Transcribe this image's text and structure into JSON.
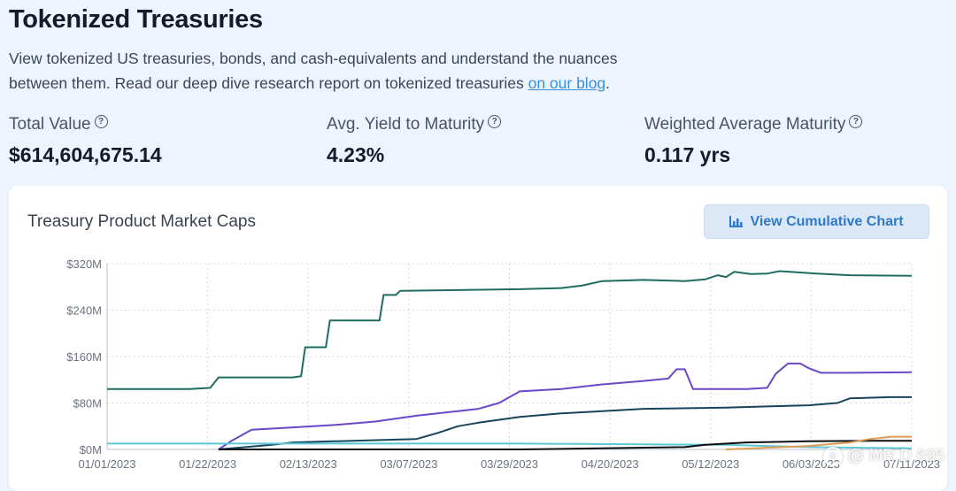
{
  "header": {
    "title": "Tokenized Treasuries",
    "description_pre": "View tokenized US treasuries, bonds, and cash-equivalents and understand the nuances between them. Read our deep dive research report on tokenized treasuries ",
    "blog_link": "on our blog",
    "description_post": "."
  },
  "stats": [
    {
      "label": "Total Value",
      "value": "$614,604,675.14"
    },
    {
      "label": "Avg. Yield to Maturity",
      "value": "4.23%"
    },
    {
      "label": "Weighted Average Maturity",
      "value": "0.117 yrs"
    }
  ],
  "card": {
    "title": "Treasury Product Market Caps",
    "button_label": "View Cumulative Chart",
    "button_icon": "bar-chart-icon"
  },
  "watermark": "@ MR.D 695",
  "colors": {
    "accent": "#3b8fd8",
    "series_teal": "#1f6b63",
    "series_purple": "#6a46c8",
    "series_navy": "#16445a",
    "series_cyan": "#5ec7d6",
    "series_black": "#0a0d12",
    "series_orange": "#e09b55"
  },
  "chart_data": {
    "type": "line",
    "x_ticks": [
      "01/01/2023",
      "01/22/2023",
      "02/13/2023",
      "03/07/2023",
      "03/29/2023",
      "04/20/2023",
      "05/12/2023",
      "06/03/2023",
      "07/11/2023"
    ],
    "y_ticks": [
      "$0M",
      "$80M",
      "$160M",
      "$240M",
      "$320M"
    ],
    "ylim": [
      0,
      320
    ],
    "xlim_days": [
      0,
      195
    ],
    "grid": true,
    "series": [
      {
        "color": "#1f6b63",
        "points": [
          [
            0,
            104
          ],
          [
            20,
            104
          ],
          [
            25,
            106
          ],
          [
            27,
            124
          ],
          [
            45,
            124
          ],
          [
            47,
            126
          ],
          [
            48,
            176
          ],
          [
            53,
            176
          ],
          [
            54,
            222
          ],
          [
            66,
            222
          ],
          [
            67,
            266
          ],
          [
            70,
            266
          ],
          [
            71,
            273
          ],
          [
            100,
            276
          ],
          [
            110,
            278
          ],
          [
            115,
            282
          ],
          [
            120,
            290
          ],
          [
            130,
            292
          ],
          [
            140,
            290
          ],
          [
            145,
            293
          ],
          [
            148,
            300
          ],
          [
            150,
            297
          ],
          [
            152,
            306
          ],
          [
            156,
            302
          ],
          [
            160,
            303
          ],
          [
            163,
            307
          ],
          [
            172,
            303
          ],
          [
            180,
            300
          ],
          [
            195,
            299
          ]
        ]
      },
      {
        "color": "#6a46c8",
        "points": [
          [
            27,
            0
          ],
          [
            30,
            14
          ],
          [
            35,
            34
          ],
          [
            45,
            38
          ],
          [
            55,
            42
          ],
          [
            65,
            48
          ],
          [
            75,
            58
          ],
          [
            85,
            66
          ],
          [
            90,
            70
          ],
          [
            95,
            80
          ],
          [
            100,
            100
          ],
          [
            110,
            104
          ],
          [
            120,
            112
          ],
          [
            130,
            118
          ],
          [
            136,
            122
          ],
          [
            138,
            138
          ],
          [
            140,
            138
          ],
          [
            142,
            104
          ],
          [
            150,
            104
          ],
          [
            155,
            104
          ],
          [
            160,
            106
          ],
          [
            162,
            130
          ],
          [
            165,
            148
          ],
          [
            168,
            148
          ],
          [
            170,
            140
          ],
          [
            173,
            132
          ],
          [
            180,
            132
          ],
          [
            195,
            133
          ]
        ]
      },
      {
        "color": "#16445a",
        "points": [
          [
            27,
            0
          ],
          [
            40,
            8
          ],
          [
            45,
            12
          ],
          [
            55,
            14
          ],
          [
            75,
            18
          ],
          [
            80,
            28
          ],
          [
            85,
            40
          ],
          [
            90,
            46
          ],
          [
            100,
            56
          ],
          [
            110,
            62
          ],
          [
            120,
            66
          ],
          [
            130,
            70
          ],
          [
            150,
            72
          ],
          [
            160,
            74
          ],
          [
            170,
            76
          ],
          [
            177,
            80
          ],
          [
            180,
            88
          ],
          [
            190,
            90
          ],
          [
            195,
            90
          ]
        ]
      },
      {
        "color": "#5ec7d6",
        "points": [
          [
            0,
            10
          ],
          [
            100,
            10
          ],
          [
            150,
            8
          ],
          [
            160,
            6
          ],
          [
            170,
            4
          ],
          [
            180,
            3
          ],
          [
            195,
            2
          ]
        ]
      },
      {
        "color": "#0a0d12",
        "points": [
          [
            27,
            0
          ],
          [
            100,
            0
          ],
          [
            140,
            4
          ],
          [
            145,
            8
          ],
          [
            155,
            12
          ],
          [
            170,
            14
          ],
          [
            185,
            15
          ],
          [
            195,
            15
          ]
        ]
      },
      {
        "color": "#e09b55",
        "points": [
          [
            150,
            0
          ],
          [
            170,
            6
          ],
          [
            180,
            12
          ],
          [
            185,
            18
          ],
          [
            190,
            22
          ],
          [
            195,
            22
          ]
        ]
      }
    ]
  }
}
